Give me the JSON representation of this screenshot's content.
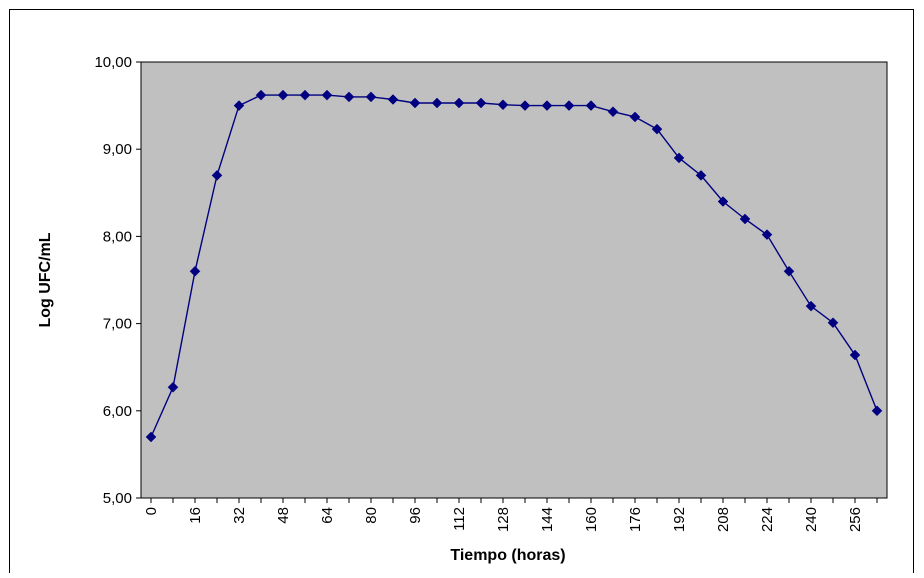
{
  "chart_data": {
    "type": "line",
    "title": "",
    "xlabel": "Tiempo (horas)",
    "ylabel": "Log UFC/mL",
    "ylim": [
      5,
      10
    ],
    "xlim": [
      0,
      264
    ],
    "y_ticks": [
      "5,00",
      "6,00",
      "7,00",
      "8,00",
      "9,00",
      "10,00"
    ],
    "x_ticks": [
      "0",
      "16",
      "32",
      "48",
      "64",
      "80",
      "96",
      "112",
      "128",
      "144",
      "160",
      "176",
      "192",
      "208",
      "224",
      "240",
      "256"
    ],
    "grid": false,
    "legend": "none",
    "series": [
      {
        "x": [
          0,
          8,
          16,
          24,
          32,
          40,
          48,
          56,
          64,
          72,
          80,
          88,
          96,
          104,
          112,
          120,
          128,
          136,
          144,
          152,
          160,
          168,
          176,
          184,
          192,
          200,
          208,
          216,
          224,
          232,
          240,
          248,
          256,
          264
        ],
        "y": [
          5.7,
          6.27,
          7.6,
          8.7,
          9.5,
          9.62,
          9.62,
          9.62,
          9.62,
          9.6,
          9.6,
          9.57,
          9.53,
          9.53,
          9.53,
          9.53,
          9.51,
          9.5,
          9.5,
          9.5,
          9.5,
          9.43,
          9.37,
          9.23,
          8.9,
          8.7,
          8.4,
          8.2,
          8.02,
          7.6,
          7.2,
          7.01,
          6.64,
          6.0
        ]
      }
    ],
    "colors": {
      "plot_background": "#c0c0c0",
      "line": "#000080",
      "marker": "#000080",
      "frame": "#000000"
    }
  }
}
